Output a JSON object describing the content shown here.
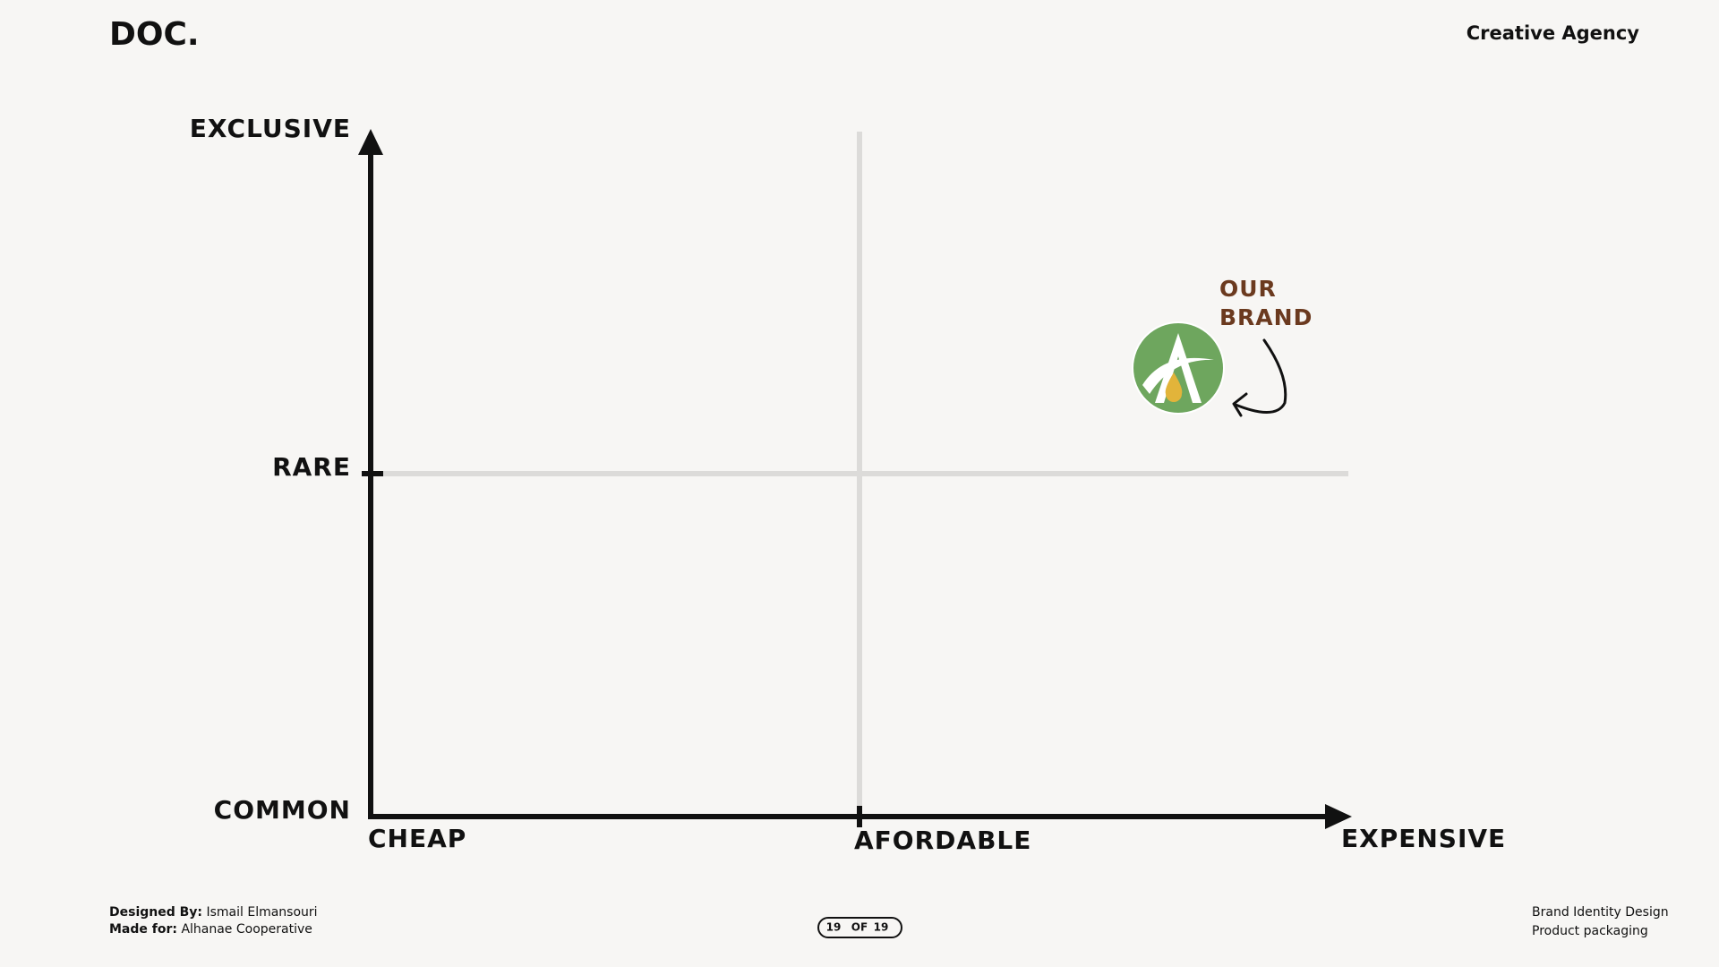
{
  "header": {
    "logo": "DOC.",
    "tagline": "Creative Agency"
  },
  "map": {
    "y_axis": {
      "top": "EXCLUSIVE",
      "middle": "RARE",
      "bottom": "COMMON"
    },
    "x_axis": {
      "left": "CHEAP",
      "middle": "AFORDABLE",
      "right": "EXPENSIVE"
    },
    "brand_label": [
      "OUR",
      "BRAND"
    ]
  },
  "footer": {
    "designed_by_label": "Designed By:",
    "designed_by": "Ismail Elmansouri",
    "made_for_label": "Made for:",
    "made_for": "Alhanae Cooperative",
    "page": {
      "current": "19",
      "of": "OF",
      "total": "19"
    },
    "right": [
      "Brand Identity Design",
      "Product packaging"
    ]
  }
}
